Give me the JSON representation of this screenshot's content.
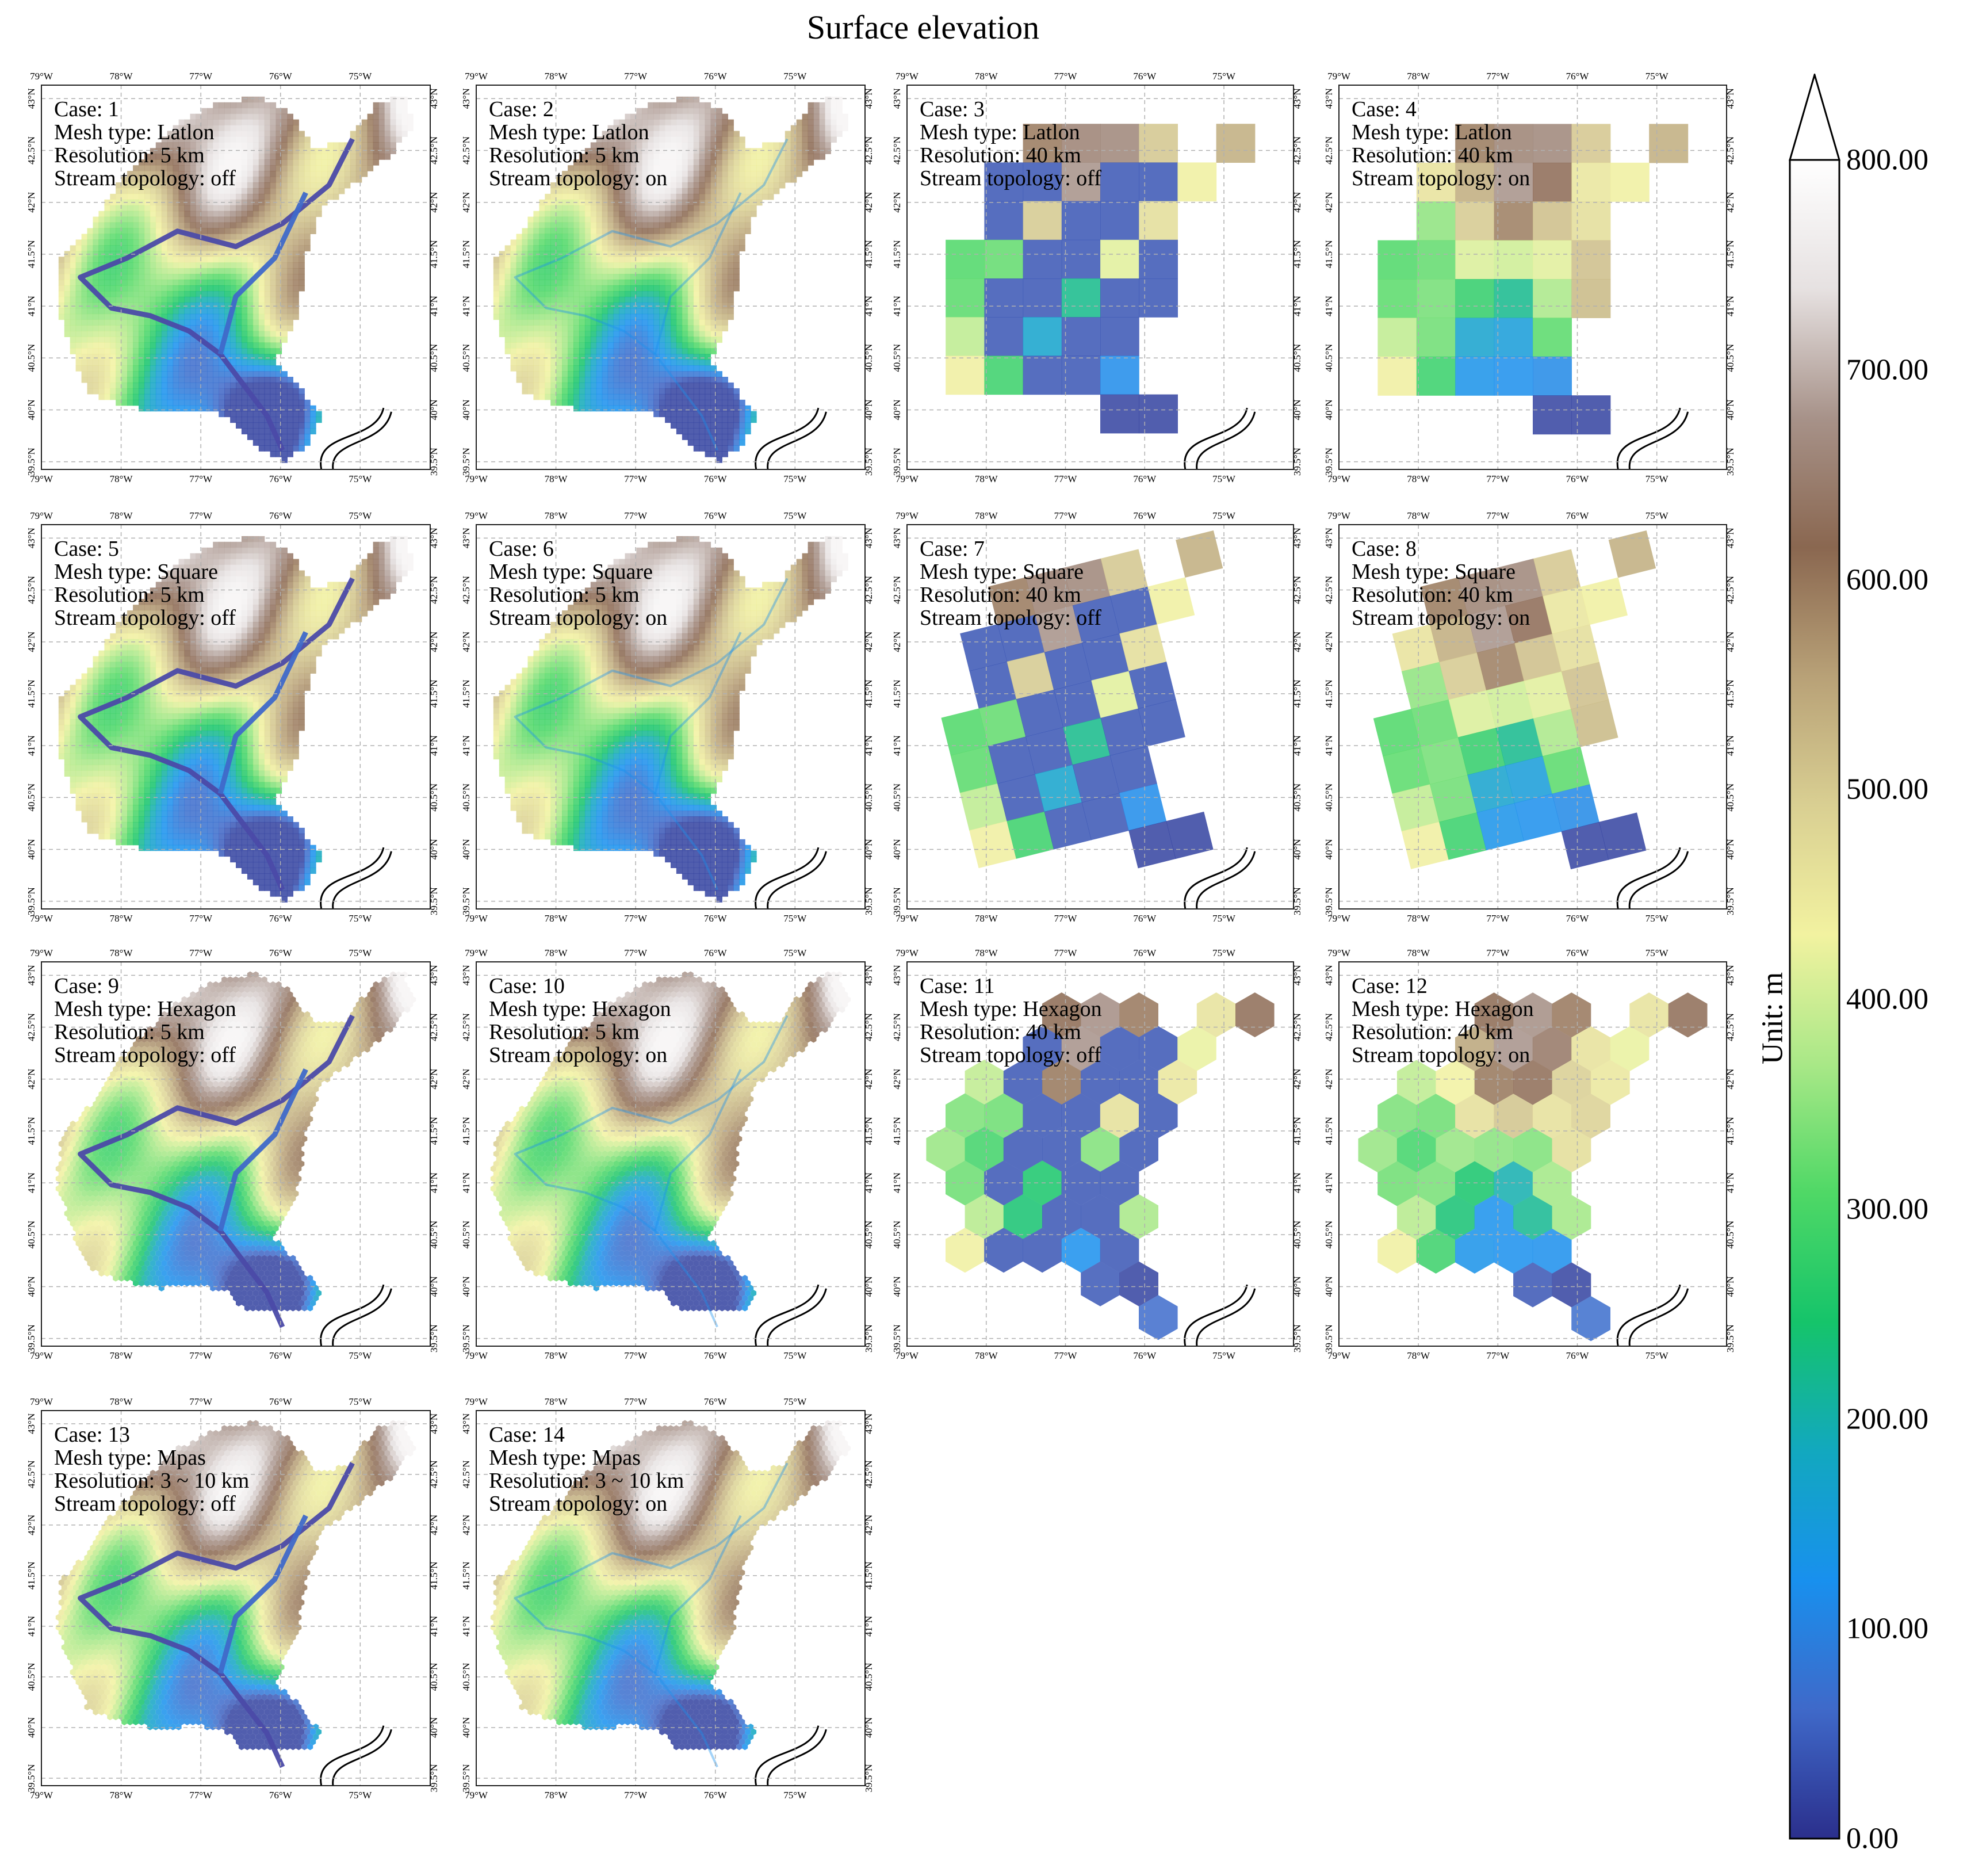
{
  "title": "Surface elevation",
  "lon_ticks": [
    "79°W",
    "78°W",
    "77°W",
    "76°W",
    "75°W"
  ],
  "lat_ticks": [
    "39.5°N",
    "40°N",
    "40.5°N",
    "41°N",
    "41.5°N",
    "42°N",
    "42.5°N",
    "43°N"
  ],
  "colorbar": {
    "unit_label": "Unit: m",
    "ticks": [
      "0.00",
      "100.00",
      "200.00",
      "300.00",
      "400.00",
      "500.00",
      "600.00",
      "700.00",
      "800.00"
    ],
    "range": [
      0,
      800
    ],
    "extend": "max",
    "colors": [
      "#2b2f8c",
      "#3f69c9",
      "#1890ee",
      "#12a8bf",
      "#15c46a",
      "#4fd866",
      "#a9e887",
      "#f2f2a0",
      "#d9cf92",
      "#b8a177",
      "#8a6750",
      "#a79289",
      "#e6e1e1",
      "#ffffff"
    ]
  },
  "chart_data": {
    "type": "heatmap",
    "title": "Surface elevation",
    "value_unit": "m",
    "value_range": [
      0,
      800
    ],
    "grid": true,
    "panels": [
      {
        "case": "Case: 1",
        "mesh": "Mesh type: Latlon",
        "res": "Resolution: 5 km",
        "stream": "Stream topology: off"
      },
      {
        "case": "Case: 2",
        "mesh": "Mesh type: Latlon",
        "res": "Resolution: 5 km",
        "stream": "Stream topology: on"
      },
      {
        "case": "Case: 3",
        "mesh": "Mesh type: Latlon",
        "res": "Resolution: 40 km",
        "stream": "Stream topology: off"
      },
      {
        "case": "Case: 4",
        "mesh": "Mesh type: Latlon",
        "res": "Resolution: 40 km",
        "stream": "Stream topology: on"
      },
      {
        "case": "Case: 5",
        "mesh": "Mesh type: Square",
        "res": "Resolution: 5 km",
        "stream": "Stream topology: off"
      },
      {
        "case": "Case: 6",
        "mesh": "Mesh type: Square",
        "res": "Resolution: 5 km",
        "stream": "Stream topology: on"
      },
      {
        "case": "Case: 7",
        "mesh": "Mesh type: Square",
        "res": "Resolution: 40 km",
        "stream": "Stream topology: off"
      },
      {
        "case": "Case: 8",
        "mesh": "Mesh type: Square",
        "res": "Resolution: 40 km",
        "stream": "Stream topology: on"
      },
      {
        "case": "Case: 9",
        "mesh": "Mesh type: Hexagon",
        "res": "Resolution: 5 km",
        "stream": "Stream topology: off"
      },
      {
        "case": "Case: 10",
        "mesh": "Mesh type: Hexagon",
        "res": "Resolution: 5 km",
        "stream": "Stream topology: on"
      },
      {
        "case": "Case: 11",
        "mesh": "Mesh type: Hexagon",
        "res": "Resolution: 40 km",
        "stream": "Stream topology: off"
      },
      {
        "case": "Case: 12",
        "mesh": "Mesh type: Hexagon",
        "res": "Resolution: 40 km",
        "stream": "Stream topology: on"
      },
      {
        "case": "Case: 13",
        "mesh": "Mesh type: Mpas",
        "res": "Resolution: 3 ~ 10 km",
        "stream": "Stream topology: off"
      },
      {
        "case": "Case: 14",
        "mesh": "Mesh type: Mpas",
        "res": "Resolution: 3 ~ 10 km",
        "stream": "Stream topology: on"
      }
    ]
  }
}
